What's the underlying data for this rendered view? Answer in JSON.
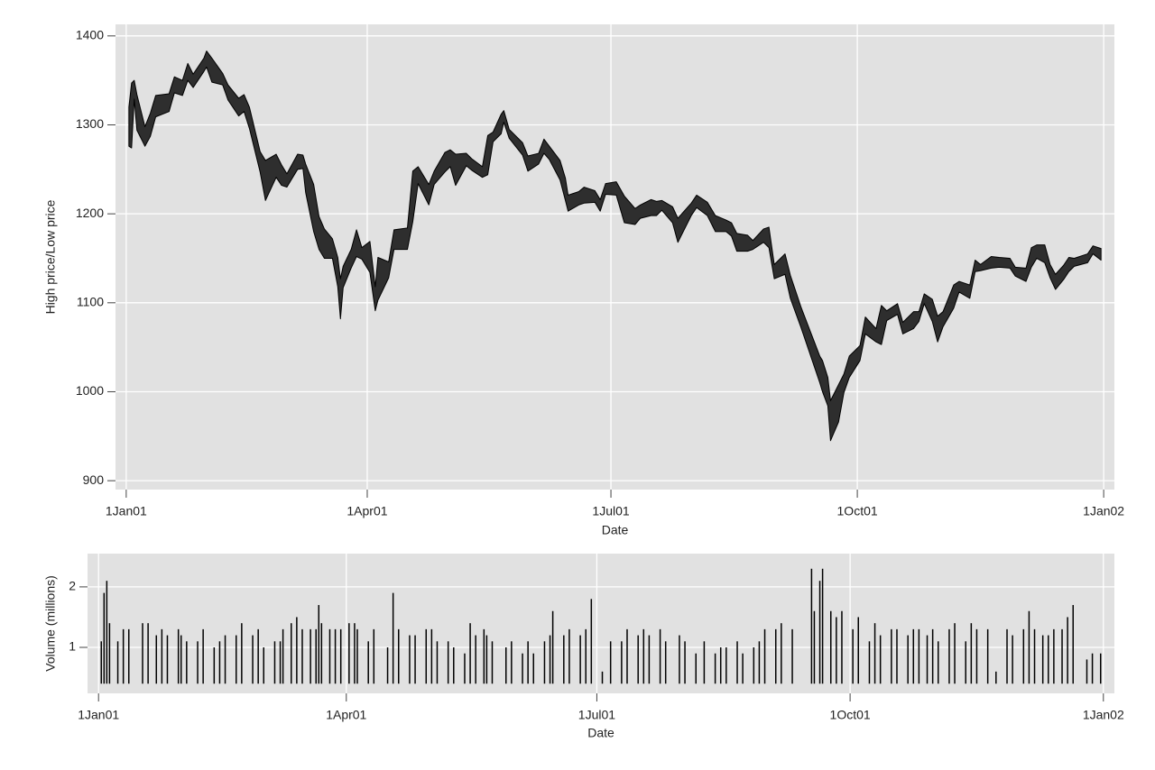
{
  "chart_data": [
    {
      "type": "rangearea",
      "color": "#2e2e2e",
      "line_color": "#000000",
      "grid": true,
      "y_title": "High price/Low price",
      "x_title": "Date",
      "xlim": [
        "2000-12-28",
        "2002-01-05"
      ],
      "xticks": [
        {
          "value": "2001-01-01",
          "label": "1Jan01"
        },
        {
          "value": "2001-04-01",
          "label": "1Apr01"
        },
        {
          "value": "2001-07-01",
          "label": "1Jul01"
        },
        {
          "value": "2001-10-01",
          "label": "1Oct01"
        },
        {
          "value": "2002-01-01",
          "label": "1Jan02"
        }
      ],
      "ylim": [
        890,
        1413
      ],
      "yticks": [
        900,
        1000,
        1100,
        1200,
        1300,
        1400
      ],
      "x": [
        "2001-01-02",
        "2001-01-03",
        "2001-01-04",
        "2001-01-05",
        "2001-01-08",
        "2001-01-10",
        "2001-01-12",
        "2001-01-17",
        "2001-01-19",
        "2001-01-22",
        "2001-01-24",
        "2001-01-26",
        "2001-01-30",
        "2001-01-31",
        "2001-02-02",
        "2001-02-06",
        "2001-02-08",
        "2001-02-12",
        "2001-02-14",
        "2001-02-16",
        "2001-02-20",
        "2001-02-22",
        "2001-02-26",
        "2001-02-28",
        "2001-03-02",
        "2001-03-06",
        "2001-03-08",
        "2001-03-09",
        "2001-03-12",
        "2001-03-14",
        "2001-03-16",
        "2001-03-19",
        "2001-03-21",
        "2001-03-22",
        "2001-03-23",
        "2001-03-26",
        "2001-03-28",
        "2001-03-30",
        "2001-04-02",
        "2001-04-04",
        "2001-04-05",
        "2001-04-09",
        "2001-04-11",
        "2001-04-16",
        "2001-04-18",
        "2001-04-20",
        "2001-04-24",
        "2001-04-26",
        "2001-04-30",
        "2001-05-02",
        "2001-05-04",
        "2001-05-08",
        "2001-05-10",
        "2001-05-14",
        "2001-05-16",
        "2001-05-18",
        "2001-05-21",
        "2001-05-22",
        "2001-05-24",
        "2001-05-29",
        "2001-05-31",
        "2001-06-04",
        "2001-06-06",
        "2001-06-08",
        "2001-06-12",
        "2001-06-14",
        "2001-06-15",
        "2001-06-19",
        "2001-06-21",
        "2001-06-25",
        "2001-06-27",
        "2001-06-29",
        "2001-07-03",
        "2001-07-06",
        "2001-07-10",
        "2001-07-12",
        "2001-07-16",
        "2001-07-18",
        "2001-07-20",
        "2001-07-24",
        "2001-07-26",
        "2001-07-31",
        "2001-08-02",
        "2001-08-06",
        "2001-08-09",
        "2001-08-13",
        "2001-08-15",
        "2001-08-17",
        "2001-08-21",
        "2001-08-23",
        "2001-08-27",
        "2001-08-29",
        "2001-08-31",
        "2001-09-04",
        "2001-09-06",
        "2001-09-10",
        "2001-09-17",
        "2001-09-18",
        "2001-09-20",
        "2001-09-21",
        "2001-09-24",
        "2001-09-26",
        "2001-09-28",
        "2001-10-02",
        "2001-10-04",
        "2001-10-08",
        "2001-10-10",
        "2001-10-12",
        "2001-10-16",
        "2001-10-18",
        "2001-10-22",
        "2001-10-24",
        "2001-10-26",
        "2001-10-29",
        "2001-10-31",
        "2001-11-02",
        "2001-11-06",
        "2001-11-08",
        "2001-11-12",
        "2001-11-14",
        "2001-11-16",
        "2001-11-20",
        "2001-11-23",
        "2001-11-27",
        "2001-11-29",
        "2001-12-03",
        "2001-12-05",
        "2001-12-07",
        "2001-12-10",
        "2001-12-12",
        "2001-12-14",
        "2001-12-17",
        "2001-12-19",
        "2001-12-21",
        "2001-12-26",
        "2001-12-28",
        "2001-12-31"
      ],
      "high": [
        1320,
        1347,
        1350,
        1334,
        1298,
        1313,
        1333,
        1335,
        1354,
        1350,
        1369,
        1357,
        1375,
        1383,
        1375,
        1358,
        1345,
        1330,
        1334,
        1320,
        1270,
        1260,
        1267,
        1255,
        1245,
        1267,
        1266,
        1256,
        1233,
        1197,
        1183,
        1172,
        1151,
        1127,
        1141,
        1160,
        1182,
        1162,
        1169,
        1118,
        1151,
        1146,
        1182,
        1184,
        1248,
        1253,
        1233,
        1248,
        1269,
        1272,
        1267,
        1268,
        1262,
        1253,
        1288,
        1292,
        1312,
        1316,
        1295,
        1280,
        1265,
        1268,
        1284,
        1276,
        1260,
        1240,
        1221,
        1225,
        1230,
        1226,
        1216,
        1234,
        1236,
        1220,
        1206,
        1210,
        1216,
        1214,
        1215,
        1208,
        1195,
        1212,
        1221,
        1213,
        1198,
        1193,
        1190,
        1178,
        1176,
        1170,
        1183,
        1185,
        1143,
        1155,
        1131,
        1095,
        1040,
        1035,
        1016,
        990,
        1008,
        1020,
        1040,
        1052,
        1084,
        1071,
        1097,
        1091,
        1099,
        1078,
        1090,
        1090,
        1110,
        1104,
        1085,
        1090,
        1120,
        1124,
        1120,
        1148,
        1143,
        1152,
        1151,
        1150,
        1140,
        1139,
        1162,
        1165,
        1165,
        1143,
        1132,
        1142,
        1151,
        1150,
        1155,
        1164,
        1161
      ],
      "low": [
        1276,
        1274,
        1329,
        1294,
        1276,
        1287,
        1309,
        1315,
        1336,
        1333,
        1350,
        1342,
        1360,
        1365,
        1348,
        1345,
        1328,
        1310,
        1315,
        1296,
        1247,
        1215,
        1241,
        1232,
        1230,
        1250,
        1251,
        1224,
        1180,
        1160,
        1150,
        1150,
        1118,
        1082,
        1117,
        1139,
        1152,
        1149,
        1134,
        1091,
        1103,
        1128,
        1160,
        1160,
        1191,
        1234,
        1210,
        1233,
        1247,
        1253,
        1232,
        1254,
        1249,
        1241,
        1244,
        1281,
        1290,
        1303,
        1285,
        1266,
        1248,
        1256,
        1268,
        1261,
        1238,
        1215,
        1203,
        1210,
        1212,
        1213,
        1203,
        1222,
        1221,
        1190,
        1188,
        1195,
        1198,
        1198,
        1204,
        1190,
        1168,
        1198,
        1207,
        1198,
        1180,
        1180,
        1175,
        1158,
        1158,
        1160,
        1168,
        1162,
        1127,
        1132,
        1105,
        1072,
        1010,
        1000,
        984,
        945,
        966,
        999,
        1016,
        1035,
        1065,
        1056,
        1053,
        1080,
        1087,
        1065,
        1071,
        1079,
        1099,
        1079,
        1056,
        1073,
        1094,
        1112,
        1105,
        1135,
        1136,
        1139,
        1140,
        1139,
        1130,
        1124,
        1140,
        1150,
        1145,
        1128,
        1115,
        1126,
        1135,
        1141,
        1145,
        1155,
        1148
      ]
    },
    {
      "type": "spike",
      "color": "#000000",
      "grid": true,
      "base": 0.4,
      "y_title": "Volume (millions)",
      "x_title": "Date",
      "xlim": [
        "2000-12-28",
        "2002-01-05"
      ],
      "xticks": [
        {
          "value": "2001-01-01",
          "label": "1Jan01"
        },
        {
          "value": "2001-04-01",
          "label": "1Apr01"
        },
        {
          "value": "2001-07-01",
          "label": "1Jul01"
        },
        {
          "value": "2001-10-01",
          "label": "1Oct01"
        },
        {
          "value": "2002-01-01",
          "label": "1Jan02"
        }
      ],
      "ylim": [
        0.24,
        2.55
      ],
      "yticks": [
        1,
        2
      ],
      "x": [
        "2001-01-02",
        "2001-01-03",
        "2001-01-04",
        "2001-01-05",
        "2001-01-08",
        "2001-01-10",
        "2001-01-12",
        "2001-01-17",
        "2001-01-19",
        "2001-01-22",
        "2001-01-24",
        "2001-01-26",
        "2001-01-30",
        "2001-01-31",
        "2001-02-02",
        "2001-02-06",
        "2001-02-08",
        "2001-02-12",
        "2001-02-14",
        "2001-02-16",
        "2001-02-20",
        "2001-02-22",
        "2001-02-26",
        "2001-02-28",
        "2001-03-02",
        "2001-03-06",
        "2001-03-08",
        "2001-03-09",
        "2001-03-12",
        "2001-03-14",
        "2001-03-16",
        "2001-03-19",
        "2001-03-21",
        "2001-03-22",
        "2001-03-23",
        "2001-03-26",
        "2001-03-28",
        "2001-03-30",
        "2001-04-02",
        "2001-04-04",
        "2001-04-05",
        "2001-04-09",
        "2001-04-11",
        "2001-04-16",
        "2001-04-18",
        "2001-04-20",
        "2001-04-24",
        "2001-04-26",
        "2001-04-30",
        "2001-05-02",
        "2001-05-04",
        "2001-05-08",
        "2001-05-10",
        "2001-05-14",
        "2001-05-16",
        "2001-05-18",
        "2001-05-21",
        "2001-05-22",
        "2001-05-24",
        "2001-05-29",
        "2001-05-31",
        "2001-06-04",
        "2001-06-06",
        "2001-06-08",
        "2001-06-12",
        "2001-06-14",
        "2001-06-15",
        "2001-06-19",
        "2001-06-21",
        "2001-06-25",
        "2001-06-27",
        "2001-06-29",
        "2001-07-03",
        "2001-07-06",
        "2001-07-10",
        "2001-07-12",
        "2001-07-16",
        "2001-07-18",
        "2001-07-20",
        "2001-07-24",
        "2001-07-26",
        "2001-07-31",
        "2001-08-02",
        "2001-08-06",
        "2001-08-09",
        "2001-08-13",
        "2001-08-15",
        "2001-08-17",
        "2001-08-21",
        "2001-08-23",
        "2001-08-27",
        "2001-08-29",
        "2001-08-31",
        "2001-09-04",
        "2001-09-06",
        "2001-09-10",
        "2001-09-17",
        "2001-09-18",
        "2001-09-20",
        "2001-09-21",
        "2001-09-24",
        "2001-09-26",
        "2001-09-28",
        "2001-10-02",
        "2001-10-04",
        "2001-10-08",
        "2001-10-10",
        "2001-10-12",
        "2001-10-16",
        "2001-10-18",
        "2001-10-22",
        "2001-10-24",
        "2001-10-26",
        "2001-10-29",
        "2001-10-31",
        "2001-11-02",
        "2001-11-06",
        "2001-11-08",
        "2001-11-12",
        "2001-11-14",
        "2001-11-16",
        "2001-11-20",
        "2001-11-23",
        "2001-11-27",
        "2001-11-29",
        "2001-12-03",
        "2001-12-05",
        "2001-12-07",
        "2001-12-10",
        "2001-12-12",
        "2001-12-14",
        "2001-12-17",
        "2001-12-19",
        "2001-12-21",
        "2001-12-26",
        "2001-12-28",
        "2001-12-31"
      ],
      "values": [
        1.1,
        1.9,
        2.1,
        1.4,
        1.1,
        1.3,
        1.3,
        1.4,
        1.4,
        1.2,
        1.3,
        1.2,
        1.3,
        1.2,
        1.1,
        1.1,
        1.3,
        1.0,
        1.1,
        1.2,
        1.2,
        1.4,
        1.2,
        1.3,
        1.0,
        1.1,
        1.1,
        1.3,
        1.4,
        1.5,
        1.3,
        1.3,
        1.3,
        1.7,
        1.4,
        1.3,
        1.3,
        1.3,
        1.4,
        1.4,
        1.3,
        1.1,
        1.3,
        1.0,
        1.9,
        1.3,
        1.2,
        1.2,
        1.3,
        1.3,
        1.1,
        1.1,
        1.0,
        0.9,
        1.4,
        1.2,
        1.3,
        1.2,
        1.1,
        1.0,
        1.1,
        0.9,
        1.1,
        0.9,
        1.1,
        1.2,
        1.6,
        1.2,
        1.3,
        1.2,
        1.3,
        1.8,
        0.6,
        1.1,
        1.1,
        1.3,
        1.2,
        1.3,
        1.2,
        1.3,
        1.1,
        1.2,
        1.1,
        0.9,
        1.1,
        0.9,
        1.0,
        1.0,
        1.1,
        0.9,
        1.0,
        1.1,
        1.3,
        1.3,
        1.4,
        1.3,
        2.3,
        1.6,
        2.1,
        2.3,
        1.6,
        1.5,
        1.6,
        1.3,
        1.5,
        1.1,
        1.4,
        1.2,
        1.3,
        1.3,
        1.2,
        1.3,
        1.3,
        1.2,
        1.3,
        1.1,
        1.3,
        1.4,
        1.1,
        1.4,
        1.3,
        1.3,
        0.6,
        1.3,
        1.2,
        1.3,
        1.6,
        1.3,
        1.2,
        1.2,
        1.3,
        1.3,
        1.5,
        1.7,
        0.8,
        0.9,
        0.9
      ]
    }
  ]
}
